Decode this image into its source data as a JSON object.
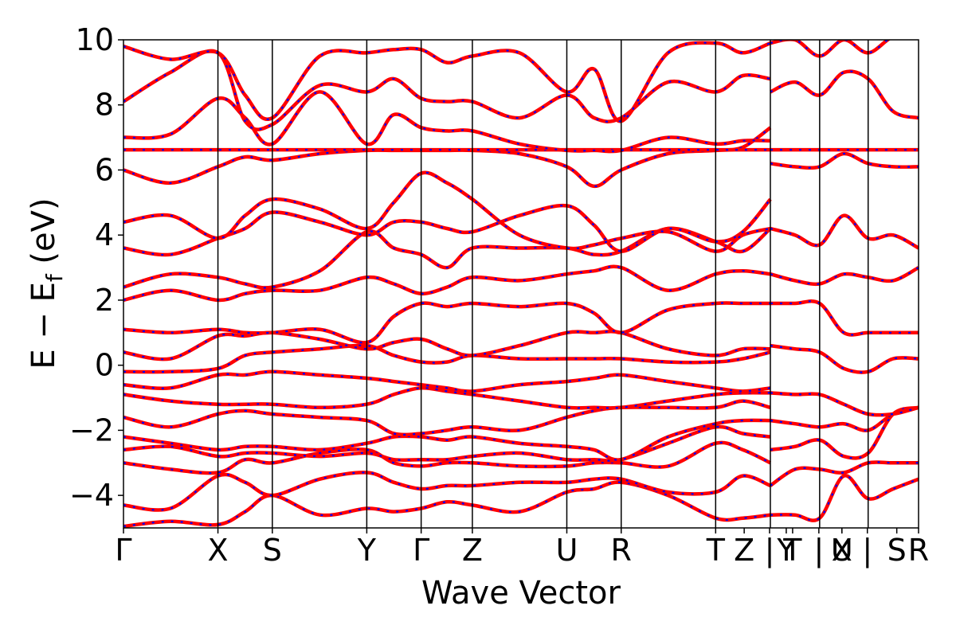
{
  "chart_data": {
    "type": "line",
    "xlabel": "Wave Vector",
    "ylabel": "E − E",
    "ylabel_subscript": "f",
    "ylabel_unit": " (eV)",
    "ylim": [
      -5,
      10
    ],
    "yticks": [
      {
        "value": 10,
        "label": "10"
      },
      {
        "value": 8,
        "label": "8"
      },
      {
        "value": 6,
        "label": "6"
      },
      {
        "value": 4,
        "label": "4"
      },
      {
        "value": 2,
        "label": "2"
      },
      {
        "value": 0,
        "label": "0"
      },
      {
        "value": -2,
        "label": "−2"
      },
      {
        "value": -4,
        "label": "−4"
      }
    ],
    "xlim": [
      0,
      100
    ],
    "xticks": [
      {
        "k": 0,
        "label": "Γ"
      },
      {
        "k": 11.88,
        "label": "X"
      },
      {
        "k": 18.72,
        "label": "S"
      },
      {
        "k": 30.6,
        "label": "Y"
      },
      {
        "k": 37.44,
        "label": "Γ"
      },
      {
        "k": 43.88,
        "label": "Z"
      },
      {
        "k": 55.76,
        "label": "U"
      },
      {
        "k": 62.6,
        "label": "R"
      },
      {
        "k": 74.48,
        "label": "T"
      },
      {
        "k": 78.07,
        "label": "Z"
      },
      {
        "k": 81.26,
        "label": "|"
      },
      {
        "k": 83.36,
        "label": "Y"
      },
      {
        "k": 84.16,
        "label": "T"
      },
      {
        "k": 87.46,
        "label": "|"
      },
      {
        "k": 90.36,
        "label": "U"
      },
      {
        "k": 90.36,
        "label": "X"
      },
      {
        "k": 93.56,
        "label": "|"
      },
      {
        "k": 97.26,
        "label": "S"
      },
      {
        "k": 100,
        "label": "R"
      }
    ],
    "segment_boundaries": [
      0,
      11.88,
      18.72,
      30.6,
      37.44,
      43.88,
      55.76,
      62.6,
      74.48,
      81.36,
      87.56,
      93.66,
      100
    ],
    "grid": false,
    "legend": "none",
    "line_colors": {
      "band": "#ff0000",
      "overlay_dash": "#0000ff"
    },
    "series": [
      {
        "x": [
          0,
          5.9,
          11.88,
          15.3,
          18.72,
          24.7,
          30.6,
          34.0,
          37.44,
          40.7,
          43.88,
          49.8,
          55.76,
          59.2,
          62.6,
          68.5,
          74.48,
          77.9,
          81.36
        ],
        "y": [
          -4.95,
          -4.8,
          -4.9,
          -4.5,
          -4.0,
          -4.6,
          -4.4,
          -4.5,
          -4.4,
          -4.2,
          -4.3,
          -4.5,
          -3.9,
          -3.8,
          -3.6,
          -4.0,
          -4.7,
          -4.7,
          -4.6
        ]
      },
      {
        "x": [
          0,
          5.9,
          11.88,
          15.3,
          18.72,
          24.7,
          30.6,
          34.0,
          37.44,
          40.7,
          43.88,
          49.8,
          55.76,
          59.2,
          62.6,
          68.5,
          74.48,
          77.9,
          81.36
        ],
        "y": [
          -4.3,
          -4.4,
          -3.4,
          -3.6,
          -4.0,
          -3.5,
          -3.3,
          -3.6,
          -3.8,
          -3.7,
          -3.7,
          -3.6,
          -3.6,
          -3.5,
          -3.5,
          -3.9,
          -3.9,
          -3.4,
          -3.7
        ]
      },
      {
        "x": [
          0,
          5.9,
          11.88,
          15.3,
          18.72,
          24.7,
          30.6,
          34.0,
          37.44,
          40.7,
          43.88,
          49.8,
          55.76,
          59.2,
          62.6,
          68.5,
          74.48,
          77.9,
          81.36
        ],
        "y": [
          -3.0,
          -3.2,
          -3.3,
          -2.9,
          -3.0,
          -2.7,
          -2.6,
          -3.0,
          -3.1,
          -3.0,
          -3.0,
          -3.1,
          -3.1,
          -3.0,
          -3.0,
          -3.1,
          -2.4,
          -2.6,
          -3.0
        ]
      },
      {
        "x": [
          0,
          5.9,
          11.88,
          15.3,
          18.72,
          24.7,
          30.6,
          34.0,
          37.44,
          40.7,
          43.88,
          49.8,
          55.76,
          59.2,
          62.6,
          68.5,
          74.48,
          77.9,
          81.36
        ],
        "y": [
          -2.6,
          -2.5,
          -2.8,
          -2.7,
          -2.7,
          -2.8,
          -2.7,
          -2.9,
          -2.9,
          -2.9,
          -2.8,
          -2.7,
          -2.9,
          -2.9,
          -2.9,
          -2.4,
          -1.9,
          -2.1,
          -2.2
        ]
      },
      {
        "x": [
          0,
          5.9,
          11.88,
          15.3,
          18.72,
          24.7,
          30.6,
          34.0,
          37.44,
          40.7,
          43.88,
          49.8,
          55.76,
          59.2,
          62.6,
          68.5,
          74.48,
          77.9,
          81.36
        ],
        "y": [
          -2.2,
          -2.4,
          -2.6,
          -2.5,
          -2.5,
          -2.6,
          -2.4,
          -2.2,
          -2.2,
          -2.3,
          -2.2,
          -2.4,
          -2.5,
          -2.6,
          -2.9,
          -2.2,
          -1.8,
          -1.7,
          -1.7
        ]
      },
      {
        "x": [
          0,
          5.9,
          11.88,
          15.3,
          18.72,
          24.7,
          30.6,
          34.0,
          37.44,
          40.7,
          43.88,
          49.8,
          55.76,
          59.2,
          62.6,
          68.5,
          74.48,
          77.9,
          81.36
        ],
        "y": [
          -1.6,
          -1.9,
          -1.5,
          -1.4,
          -1.5,
          -1.6,
          -1.7,
          -2.1,
          -2.1,
          -2.0,
          -1.9,
          -2.0,
          -1.6,
          -1.4,
          -1.3,
          -1.3,
          -1.3,
          -1.1,
          -1.3
        ]
      },
      {
        "x": [
          0,
          5.9,
          11.88,
          15.3,
          18.72,
          24.7,
          30.6,
          34.0,
          37.44,
          40.7,
          43.88,
          49.8,
          55.76,
          59.2,
          62.6,
          68.5,
          74.48,
          77.9,
          81.36
        ],
        "y": [
          -0.9,
          -1.1,
          -1.2,
          -1.2,
          -1.2,
          -1.3,
          -1.2,
          -0.9,
          -0.7,
          -0.8,
          -0.9,
          -1.1,
          -1.3,
          -1.3,
          -1.3,
          -1.1,
          -0.9,
          -0.85,
          -0.85
        ]
      },
      {
        "x": [
          0,
          5.9,
          11.88,
          15.3,
          18.72,
          24.7,
          30.6,
          34.0,
          37.44,
          40.7,
          43.88,
          49.8,
          55.76,
          59.2,
          62.6,
          68.5,
          74.48,
          77.9,
          81.36
        ],
        "y": [
          -0.6,
          -0.7,
          -0.3,
          -0.3,
          -0.2,
          -0.3,
          -0.4,
          -0.5,
          -0.6,
          -0.7,
          -0.8,
          -0.6,
          -0.5,
          -0.4,
          -0.3,
          -0.5,
          -0.7,
          -0.8,
          -0.7
        ]
      },
      {
        "x": [
          0,
          5.9,
          11.88,
          15.3,
          18.72,
          24.7,
          30.6,
          34.0,
          37.44,
          40.7,
          43.88,
          49.8,
          55.76,
          59.2,
          62.6,
          68.5,
          74.48,
          77.9,
          81.36
        ],
        "y": [
          -0.2,
          -0.2,
          -0.1,
          0.3,
          0.4,
          0.5,
          0.6,
          0.3,
          0.1,
          0.1,
          0.3,
          0.2,
          0.2,
          0.2,
          0.2,
          0.1,
          0.1,
          0.2,
          0.4
        ]
      },
      {
        "x": [
          0,
          5.9,
          11.88,
          15.3,
          18.72,
          24.7,
          30.6,
          34.0,
          37.44,
          40.7,
          43.88,
          49.8,
          55.76,
          59.2,
          62.6,
          68.5,
          74.48,
          77.9,
          81.36
        ],
        "y": [
          0.4,
          0.2,
          0.9,
          0.9,
          1.0,
          0.8,
          0.5,
          0.7,
          0.8,
          0.5,
          0.3,
          0.6,
          1.0,
          1.0,
          1.0,
          0.5,
          0.3,
          0.5,
          0.5
        ]
      },
      {
        "x": [
          0,
          5.9,
          11.88,
          15.3,
          18.72,
          24.7,
          30.6,
          34.0,
          37.44,
          40.7,
          43.88,
          49.8,
          55.76,
          59.2,
          62.6,
          68.5,
          74.48,
          77.9,
          81.36
        ],
        "y": [
          1.1,
          1.0,
          1.1,
          1.0,
          1.0,
          1.1,
          0.7,
          1.5,
          1.9,
          1.8,
          1.9,
          1.8,
          1.9,
          1.6,
          1.0,
          1.7,
          1.9,
          1.9,
          1.9
        ]
      },
      {
        "x": [
          0,
          5.9,
          11.88,
          15.3,
          18.72,
          24.7,
          30.6,
          34.0,
          37.44,
          40.7,
          43.88,
          49.8,
          55.76,
          59.2,
          62.6,
          68.5,
          74.48,
          77.9,
          81.36
        ],
        "y": [
          2.0,
          2.3,
          2.0,
          2.2,
          2.3,
          2.3,
          2.7,
          2.5,
          2.2,
          2.4,
          2.7,
          2.6,
          2.8,
          2.9,
          3.0,
          2.3,
          2.8,
          2.9,
          2.8
        ]
      },
      {
        "x": [
          0,
          5.9,
          11.88,
          15.3,
          18.72,
          24.7,
          30.6,
          34.0,
          37.44,
          40.7,
          43.88,
          49.8,
          55.76,
          59.2,
          62.6,
          68.5,
          74.48,
          77.9,
          81.36
        ],
        "y": [
          2.4,
          2.8,
          2.7,
          2.5,
          2.4,
          2.9,
          4.1,
          3.6,
          3.4,
          3.0,
          3.6,
          3.6,
          3.6,
          3.4,
          3.5,
          4.2,
          3.8,
          3.5,
          4.2
        ]
      },
      {
        "x": [
          0,
          5.9,
          11.88,
          15.3,
          18.72,
          24.7,
          30.6,
          34.0,
          37.44,
          40.7,
          43.88,
          49.8,
          55.76,
          59.2,
          62.6,
          68.5,
          74.48,
          77.9,
          81.36
        ],
        "y": [
          3.6,
          3.4,
          3.9,
          4.2,
          4.7,
          4.4,
          4.0,
          4.4,
          4.4,
          4.2,
          4.1,
          4.6,
          4.9,
          4.3,
          3.5,
          4.2,
          3.8,
          4.1,
          5.1
        ]
      },
      {
        "x": [
          0,
          5.9,
          11.88,
          15.3,
          18.72,
          24.7,
          30.6,
          34.0,
          37.44,
          40.7,
          43.88,
          49.8,
          55.76,
          59.2,
          62.6,
          68.5,
          74.48,
          77.9,
          81.36
        ],
        "y": [
          4.4,
          4.6,
          3.9,
          4.6,
          5.1,
          4.8,
          4.2,
          5.0,
          5.9,
          5.6,
          5.1,
          4.0,
          3.6,
          3.7,
          3.9,
          4.1,
          3.5,
          4.0,
          4.2
        ]
      },
      {
        "x": [
          0,
          5.9,
          11.88,
          15.3,
          18.72,
          24.7,
          30.6,
          34.0,
          37.44,
          40.7,
          43.88,
          49.8,
          55.76,
          59.2,
          62.6,
          68.5,
          74.48,
          77.9,
          81.36
        ],
        "y": [
          6.0,
          5.6,
          6.1,
          6.4,
          6.3,
          6.5,
          6.6,
          6.6,
          6.6,
          6.6,
          6.6,
          6.5,
          6.1,
          5.5,
          6.0,
          6.5,
          6.6,
          6.7,
          7.3
        ]
      },
      {
        "x": [
          0,
          5.9,
          11.88,
          15.3,
          18.72,
          24.7,
          30.6,
          34.0,
          37.44,
          40.7,
          43.88,
          49.8,
          55.76,
          59.2,
          62.6,
          68.5,
          74.48,
          77.9,
          81.36
        ],
        "y": [
          6.62,
          6.62,
          6.62,
          6.62,
          6.62,
          6.62,
          6.62,
          6.62,
          6.62,
          6.62,
          6.62,
          6.62,
          6.62,
          6.62,
          6.62,
          6.62,
          6.62,
          6.62,
          6.62
        ]
      },
      {
        "x": [
          0,
          5.9,
          11.88,
          15.3,
          18.72,
          24.7,
          30.6,
          34.0,
          37.44,
          40.7,
          43.88,
          49.8,
          55.76,
          59.2,
          62.6,
          68.5,
          74.48,
          77.9,
          81.36
        ],
        "y": [
          7.0,
          7.1,
          8.2,
          7.6,
          6.8,
          8.4,
          6.8,
          7.7,
          7.3,
          7.2,
          7.2,
          6.8,
          6.6,
          6.6,
          6.6,
          7.0,
          6.8,
          6.9,
          6.9
        ]
      },
      {
        "x": [
          0,
          5.9,
          11.88,
          15.3,
          18.72,
          24.7,
          30.6,
          34.0,
          37.44,
          40.7,
          43.88,
          49.8,
          55.76,
          59.2,
          62.6,
          68.5,
          74.48,
          77.9,
          81.36
        ],
        "y": [
          8.1,
          9.0,
          9.6,
          7.5,
          7.4,
          8.6,
          8.4,
          8.8,
          8.2,
          8.1,
          8.1,
          7.6,
          8.3,
          7.6,
          7.6,
          8.7,
          8.4,
          8.9,
          8.8
        ]
      },
      {
        "x": [
          0,
          5.9,
          11.88,
          15.3,
          18.72,
          24.7,
          30.6,
          34.0,
          37.44,
          40.7,
          43.88,
          49.8,
          55.76,
          59.2,
          62.6,
          68.5,
          74.48,
          77.9,
          81.36
        ],
        "y": [
          9.8,
          9.4,
          9.6,
          8.3,
          7.6,
          9.5,
          9.6,
          9.7,
          9.7,
          9.3,
          9.5,
          9.6,
          8.4,
          9.1,
          7.5,
          9.6,
          9.9,
          9.6,
          9.9
        ]
      },
      {
        "x": [
          81.36,
          84.46,
          87.56,
          90.6,
          93.66,
          96.8,
          100
        ],
        "y": [
          -4.6,
          -4.6,
          -4.7,
          -3.4,
          -4.1,
          -3.8,
          -3.5
        ]
      },
      {
        "x": [
          81.36,
          84.46,
          87.56,
          90.6,
          93.66,
          96.8,
          100
        ],
        "y": [
          -3.7,
          -3.2,
          -3.2,
          -3.3,
          -3.0,
          -3.0,
          -3.0
        ]
      },
      {
        "x": [
          81.36,
          84.46,
          87.56,
          90.6,
          93.66,
          96.8,
          100
        ],
        "y": [
          -2.6,
          -2.5,
          -2.3,
          -2.8,
          -2.7,
          -1.5,
          -1.3
        ]
      },
      {
        "x": [
          81.36,
          84.46,
          87.56,
          90.6,
          93.66,
          96.8,
          100
        ],
        "y": [
          -1.7,
          -1.8,
          -1.9,
          -1.8,
          -2.0,
          -1.5,
          -1.3
        ]
      },
      {
        "x": [
          81.36,
          84.46,
          87.56,
          90.6,
          93.66,
          96.8,
          100
        ],
        "y": [
          -0.85,
          -0.9,
          -0.9,
          -1.2,
          -1.5,
          -1.5,
          -1.3
        ]
      },
      {
        "x": [
          81.36,
          84.46,
          87.56,
          90.6,
          93.66,
          96.8,
          100
        ],
        "y": [
          0.6,
          0.5,
          0.4,
          -0.1,
          -0.2,
          0.2,
          0.2
        ]
      },
      {
        "x": [
          81.36,
          84.46,
          87.56,
          90.6,
          93.66,
          96.8,
          100
        ],
        "y": [
          1.9,
          1.9,
          1.9,
          1.0,
          1.0,
          1.0,
          1.0
        ]
      },
      {
        "x": [
          81.36,
          84.46,
          87.56,
          90.6,
          93.66,
          96.8,
          100
        ],
        "y": [
          2.8,
          2.6,
          2.5,
          2.8,
          2.7,
          2.6,
          3.0
        ]
      },
      {
        "x": [
          81.36,
          84.46,
          87.56,
          90.6,
          93.66,
          96.8,
          100
        ],
        "y": [
          4.2,
          4.0,
          3.7,
          4.6,
          3.9,
          4.0,
          3.6
        ]
      },
      {
        "x": [
          81.36,
          84.46,
          87.56,
          90.6,
          93.66,
          96.8,
          100
        ],
        "y": [
          6.2,
          6.1,
          6.1,
          6.5,
          6.2,
          6.1,
          6.1
        ]
      },
      {
        "x": [
          81.36,
          84.46,
          87.56,
          90.6,
          93.66,
          96.8,
          100
        ],
        "y": [
          6.62,
          6.62,
          6.62,
          6.62,
          6.62,
          6.62,
          6.62
        ]
      },
      {
        "x": [
          81.36,
          84.46,
          87.56,
          90.6,
          93.66,
          96.8,
          100
        ],
        "y": [
          8.4,
          8.7,
          8.3,
          9.0,
          8.8,
          7.8,
          7.6
        ]
      },
      {
        "x": [
          81.36,
          84.46,
          87.56,
          90.6,
          93.66,
          96.8,
          100
        ],
        "y": [
          9.9,
          10.0,
          9.5,
          10.0,
          9.6,
          10.1,
          10.2
        ]
      }
    ]
  }
}
